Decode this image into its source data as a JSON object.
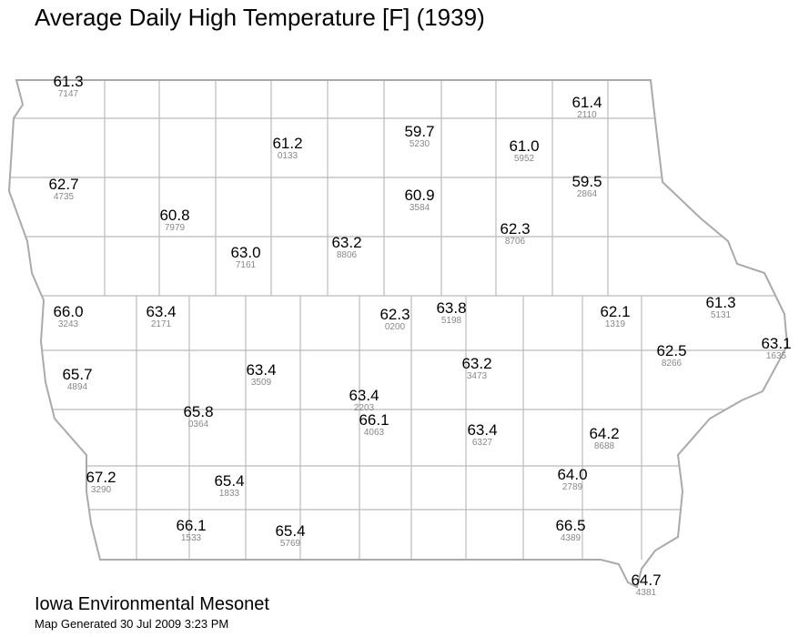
{
  "header": {
    "title": "Average Daily High Temperature [F] (1939)"
  },
  "stations": [
    {
      "value": "61.3",
      "id": "7147"
    },
    {
      "value": "61.4",
      "id": "2110"
    },
    {
      "value": "59.7",
      "id": "5230"
    },
    {
      "value": "61.2",
      "id": "0133"
    },
    {
      "value": "61.0",
      "id": "5952"
    },
    {
      "value": "62.7",
      "id": "4735"
    },
    {
      "value": "59.5",
      "id": "2864"
    },
    {
      "value": "60.9",
      "id": "3584"
    },
    {
      "value": "60.8",
      "id": "7979"
    },
    {
      "value": "62.3",
      "id": "8706"
    },
    {
      "value": "63.0",
      "id": "7161"
    },
    {
      "value": "63.2",
      "id": "8806"
    },
    {
      "value": "66.0",
      "id": "3243"
    },
    {
      "value": "63.4",
      "id": "2171"
    },
    {
      "value": "62.3",
      "id": "0200"
    },
    {
      "value": "63.8",
      "id": "5198"
    },
    {
      "value": "62.1",
      "id": "1319"
    },
    {
      "value": "61.3",
      "id": "5131"
    },
    {
      "value": "62.5",
      "id": "8266"
    },
    {
      "value": "63.1",
      "id": "1635"
    },
    {
      "value": "65.7",
      "id": "4894"
    },
    {
      "value": "63.4",
      "id": "3509"
    },
    {
      "value": "63.2",
      "id": "3473"
    },
    {
      "value": "63.4",
      "id": "2203"
    },
    {
      "value": "66.1",
      "id": "4063"
    },
    {
      "value": "65.8",
      "id": "0364"
    },
    {
      "value": "63.4",
      "id": "6327"
    },
    {
      "value": "64.2",
      "id": "8688"
    },
    {
      "value": "67.2",
      "id": "3290"
    },
    {
      "value": "65.4",
      "id": "1833"
    },
    {
      "value": "64.0",
      "id": "2789"
    },
    {
      "value": "66.1",
      "id": "1533"
    },
    {
      "value": "65.4",
      "id": "5769"
    },
    {
      "value": "66.5",
      "id": "4389"
    },
    {
      "value": "64.7",
      "id": "4381"
    }
  ],
  "footer": {
    "organization": "Iowa Environmental Mesonet",
    "generated": "Map Generated 30 Jul 2009 3:23 PM"
  }
}
